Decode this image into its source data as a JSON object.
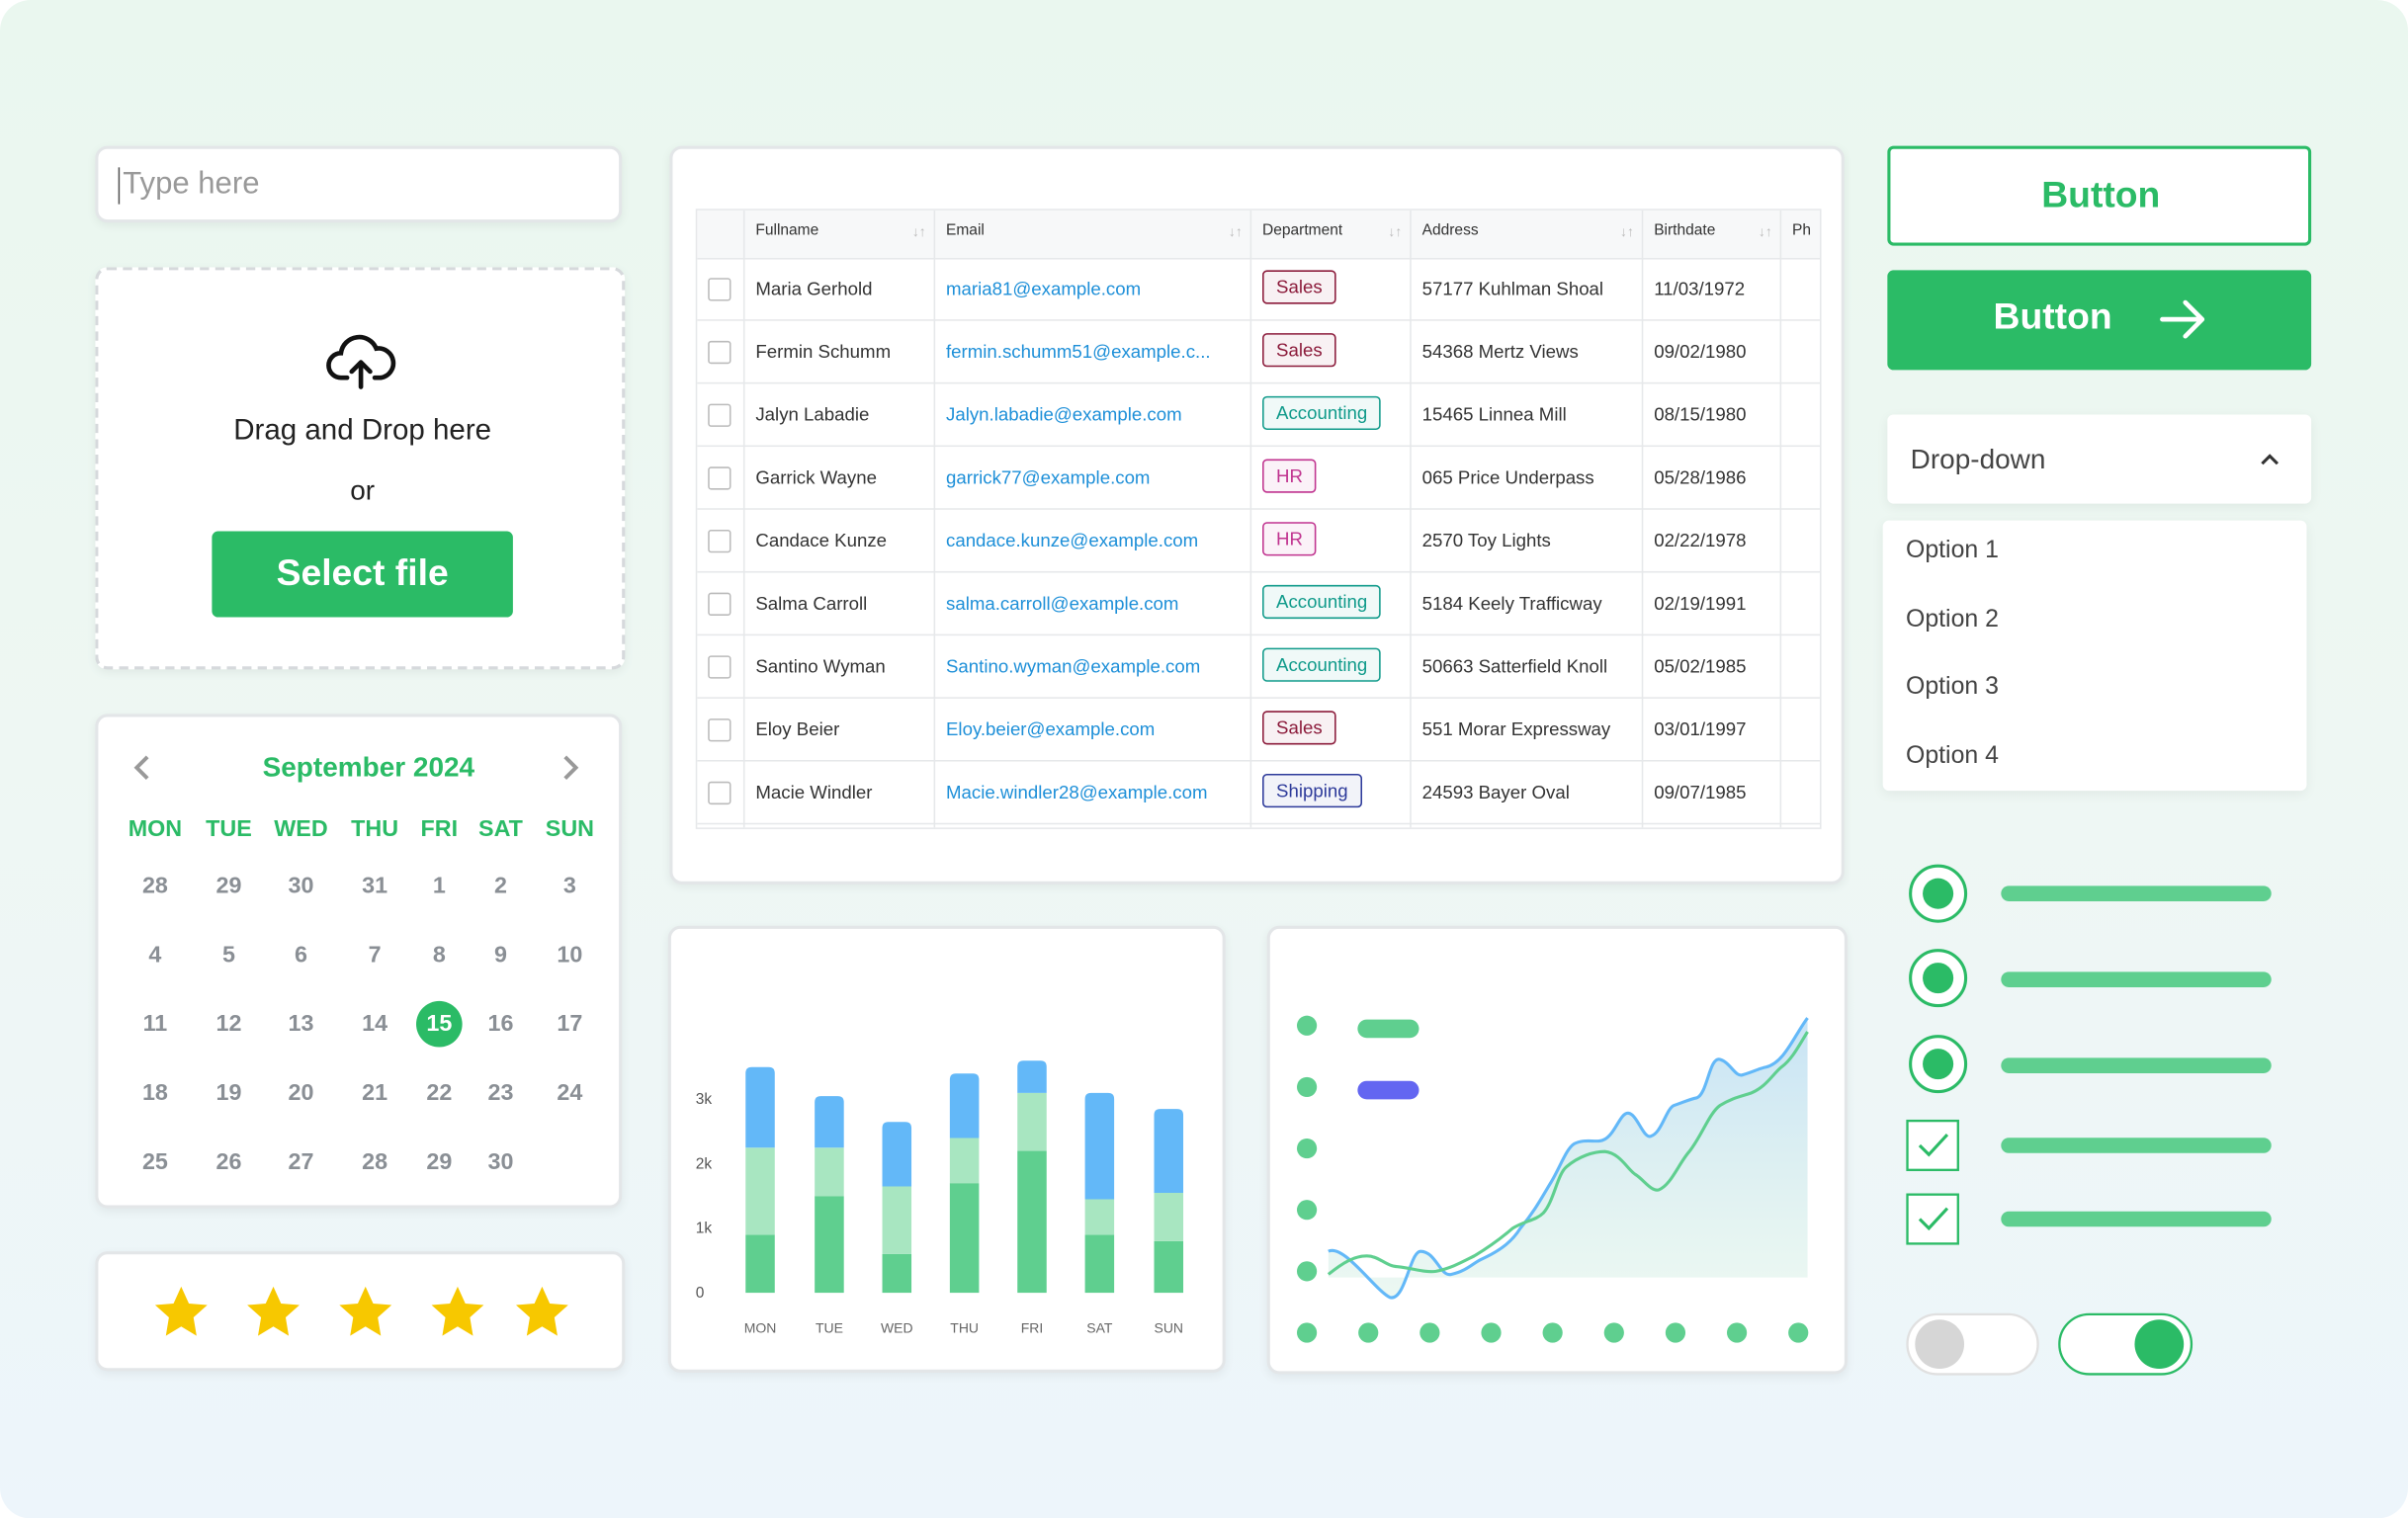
{
  "input": {
    "placeholder": "Type here"
  },
  "upload": {
    "text": "Drag and Drop here",
    "or": "or",
    "button": "Select file"
  },
  "calendar": {
    "title": "September 2024",
    "days": [
      "MON",
      "TUE",
      "WED",
      "THU",
      "FRI",
      "SAT",
      "SUN"
    ],
    "weeks": [
      [
        28,
        29,
        30,
        31,
        1,
        2,
        3
      ],
      [
        4,
        5,
        6,
        7,
        8,
        9,
        10
      ],
      [
        11,
        12,
        13,
        14,
        15,
        16,
        17
      ],
      [
        18,
        19,
        20,
        21,
        22,
        23,
        24
      ],
      [
        25,
        26,
        27,
        28,
        29,
        30
      ]
    ]
  },
  "table": {
    "columns": [
      "Fullname",
      "Email",
      "Department",
      "Address",
      "Birthdate",
      "Ph"
    ],
    "rows": [
      [
        "Maria Gerhold",
        "maria81@example.com",
        "Sales",
        "57177 Kuhlman Shoal",
        "11/03/1972"
      ],
      [
        "Fermin Schumm",
        "fermin.schumm51@example.c...",
        "Sales",
        "54368 Mertz Views",
        "09/02/1980"
      ],
      [
        "Jalyn Labadie",
        "Jalyn.labadie@example.com",
        "Accounting",
        "15465 Linnea Mill",
        "08/15/1980"
      ],
      [
        "Garrick Wayne",
        "garrick77@example.com",
        "HR",
        "065 Price Underpass",
        "05/28/1986"
      ],
      [
        "Candace Kunze",
        "candace.kunze@example.com",
        "HR",
        "2570 Toy Lights",
        "02/22/1978"
      ],
      [
        "Salma Carroll",
        "salma.carroll@example.com",
        "Accounting",
        "5184 Keely Trafficway",
        "02/19/1991"
      ],
      [
        "Santino Wyman",
        "Santino.wyman@example.com",
        "Accounting",
        "50663 Satterfield Knoll",
        "05/02/1985"
      ],
      [
        "Eloy Beier",
        "Eloy.beier@example.com",
        "Sales",
        "551 Morar Expressway",
        "03/01/1997"
      ],
      [
        "Macie Windler",
        "Macie.windler28@example.com",
        "Shipping",
        "24593 Bayer Oval",
        "09/07/1985"
      ]
    ],
    "department_colors": {
      "Sales": "#8b1a3a",
      "Accounting": "#0f9a8a",
      "HR": "#c0338f",
      "Shipping": "#2d3a9a"
    }
  },
  "chart_data": {
    "type": "bar",
    "stacked": true,
    "categories": [
      "MON",
      "TUE",
      "WED",
      "THU",
      "FRI",
      "SAT",
      "SUN"
    ],
    "series": [
      {
        "color": "#5fcf8f",
        "values": [
          0.9,
          1.5,
          0.6,
          1.7,
          2.2,
          0.9,
          0.8
        ]
      },
      {
        "color": "#a8e6c1",
        "values": [
          1.35,
          0.75,
          1.05,
          0.7,
          0.9,
          0.55,
          0.75
        ]
      },
      {
        "color": "#63b8f8",
        "values": [
          1.25,
          0.8,
          1.0,
          1.0,
          0.5,
          1.65,
          1.3
        ]
      }
    ],
    "ylim": [
      0,
      3.6
    ],
    "yticks": [
      0,
      {
        "value": 1,
        "label": "1k"
      },
      {
        "value": 2,
        "label": "2k"
      },
      {
        "value": 3,
        "label": "3k"
      }
    ]
  },
  "buttons": {
    "outline": "Button",
    "filled": "Button"
  },
  "dropdown": {
    "label": "Drop-down",
    "options": [
      "Option 1",
      "Option 2",
      "Option 3",
      "Option 4"
    ]
  }
}
